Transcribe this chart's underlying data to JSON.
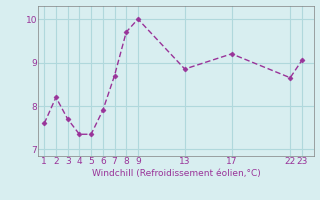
{
  "x": [
    1,
    2,
    3,
    4,
    5,
    6,
    7,
    8,
    9,
    13,
    17,
    22,
    23
  ],
  "y": [
    7.6,
    8.2,
    7.7,
    7.35,
    7.35,
    7.9,
    8.7,
    9.7,
    10.0,
    8.85,
    9.2,
    8.65,
    9.05
  ],
  "line_color": "#993399",
  "marker": "D",
  "marker_size": 2.5,
  "bg_color": "#d8eef0",
  "plot_bg_color": "#d8eef0",
  "grid_color": "#b0d8dc",
  "xlabel": "Windchill (Refroidissement éolien,°C)",
  "xlabel_color": "#993399",
  "xticks": [
    1,
    2,
    3,
    4,
    5,
    6,
    7,
    8,
    9,
    13,
    17,
    22,
    23
  ],
  "xtick_labels": [
    "1",
    "2",
    "3",
    "4",
    "5",
    "6",
    "7",
    "8",
    "9",
    "13",
    "17",
    "22",
    "23"
  ],
  "yticks": [
    7,
    8,
    9,
    10
  ],
  "ylim": [
    6.85,
    10.3
  ],
  "xlim": [
    0.5,
    24.0
  ],
  "tick_color": "#993399",
  "tick_fontsize": 6.5,
  "xlabel_fontsize": 6.5,
  "linewidth": 1.0,
  "spine_color": "#808080"
}
